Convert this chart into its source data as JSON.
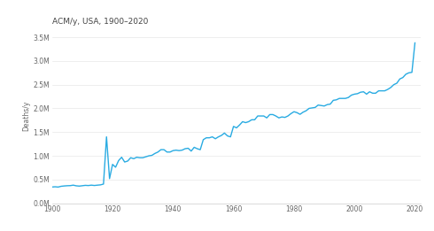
{
  "title": "ACM/y, USA, 1900–2020",
  "ylabel": "Deaths/y",
  "line_color": "#29ABE2",
  "background_color": "#ffffff",
  "years": [
    1900,
    1901,
    1902,
    1903,
    1904,
    1905,
    1906,
    1907,
    1908,
    1909,
    1910,
    1911,
    1912,
    1913,
    1914,
    1915,
    1916,
    1917,
    1918,
    1919,
    1920,
    1921,
    1922,
    1923,
    1924,
    1925,
    1926,
    1927,
    1928,
    1929,
    1930,
    1931,
    1932,
    1933,
    1934,
    1935,
    1936,
    1937,
    1938,
    1939,
    1940,
    1941,
    1942,
    1943,
    1944,
    1945,
    1946,
    1947,
    1948,
    1949,
    1950,
    1951,
    1952,
    1953,
    1954,
    1955,
    1956,
    1957,
    1958,
    1959,
    1960,
    1961,
    1962,
    1963,
    1964,
    1965,
    1966,
    1967,
    1968,
    1969,
    1970,
    1971,
    1972,
    1973,
    1974,
    1975,
    1976,
    1977,
    1978,
    1979,
    1980,
    1981,
    1982,
    1983,
    1984,
    1985,
    1986,
    1987,
    1988,
    1989,
    1990,
    1991,
    1992,
    1993,
    1994,
    1995,
    1996,
    1997,
    1998,
    1999,
    2000,
    2001,
    2002,
    2003,
    2004,
    2005,
    2006,
    2007,
    2008,
    2009,
    2010,
    2011,
    2012,
    2013,
    2014,
    2015,
    2016,
    2017,
    2018,
    2019,
    2020
  ],
  "deaths": [
    343000,
    348000,
    342000,
    358000,
    365000,
    370000,
    372000,
    382000,
    368000,
    362000,
    370000,
    378000,
    374000,
    382000,
    375000,
    382000,
    388000,
    405000,
    1400000,
    520000,
    820000,
    760000,
    900000,
    970000,
    870000,
    890000,
    960000,
    940000,
    970000,
    960000,
    960000,
    980000,
    1000000,
    1010000,
    1050000,
    1080000,
    1130000,
    1130000,
    1080000,
    1080000,
    1110000,
    1120000,
    1110000,
    1120000,
    1150000,
    1160000,
    1100000,
    1180000,
    1150000,
    1130000,
    1340000,
    1380000,
    1380000,
    1400000,
    1360000,
    1400000,
    1430000,
    1480000,
    1420000,
    1400000,
    1620000,
    1590000,
    1650000,
    1720000,
    1700000,
    1720000,
    1760000,
    1760000,
    1840000,
    1840000,
    1840000,
    1800000,
    1870000,
    1870000,
    1840000,
    1800000,
    1820000,
    1810000,
    1840000,
    1890000,
    1930000,
    1910000,
    1875000,
    1920000,
    1950000,
    2000000,
    2010000,
    2020000,
    2070000,
    2060000,
    2050000,
    2080000,
    2090000,
    2170000,
    2180000,
    2210000,
    2210000,
    2210000,
    2230000,
    2280000,
    2300000,
    2310000,
    2340000,
    2350000,
    2300000,
    2350000,
    2320000,
    2320000,
    2370000,
    2370000,
    2370000,
    2400000,
    2440000,
    2500000,
    2530000,
    2620000,
    2650000,
    2720000,
    2750000,
    2760000,
    3380000
  ]
}
